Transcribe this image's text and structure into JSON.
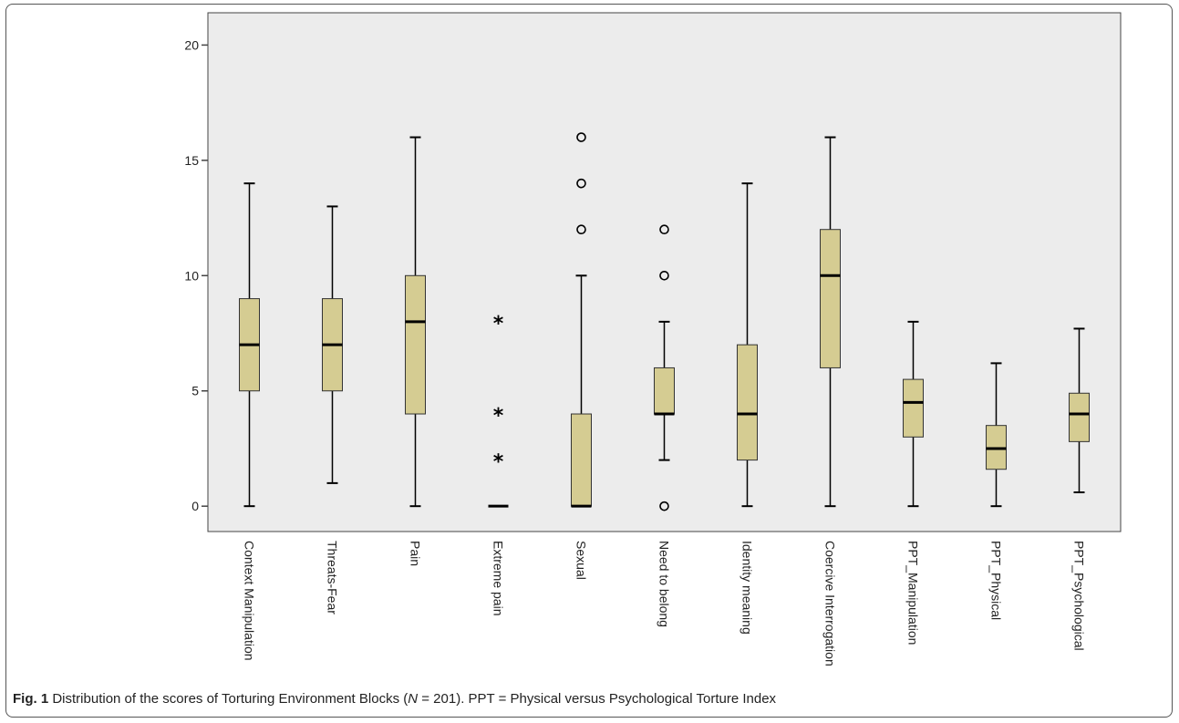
{
  "caption": {
    "fig_label": "Fig. 1",
    "text_before_n": "Distribution of the scores of Torturing Environment Blocks (",
    "n_symbol": "N",
    "text_after_n": " = 201). PPT = Physical versus Psychological Torture Index"
  },
  "colors": {
    "plot_background": "#ececec",
    "box_fill": "#d5cc92",
    "box_stroke": "#333333",
    "median": "#000000"
  },
  "chart_data": {
    "type": "boxplot",
    "title": "",
    "xlabel": "",
    "ylabel": "",
    "ylim": [
      -1.1,
      21.4
    ],
    "yticks": [
      0,
      5,
      10,
      15,
      20
    ],
    "grid": false,
    "categories": [
      "Context Manipulation",
      "Threats-Fear",
      "Pain",
      "Extreme pain",
      "Sexual",
      "Need to belong",
      "Identity meaning",
      "Coercive Interrogation",
      "PPT_Manipulation",
      "PPT_Physical",
      "PPT_Psychological"
    ],
    "boxes": [
      {
        "label": "Context Manipulation",
        "min": 0,
        "q1": 5,
        "median": 7,
        "q3": 9,
        "max": 14,
        "outliers": [],
        "extremes": []
      },
      {
        "label": "Threats-Fear",
        "min": 1,
        "q1": 5,
        "median": 7,
        "q3": 9,
        "max": 13,
        "outliers": [],
        "extremes": []
      },
      {
        "label": "Pain",
        "min": 0,
        "q1": 4,
        "median": 8,
        "q3": 10,
        "max": 16,
        "outliers": [],
        "extremes": []
      },
      {
        "label": "Extreme pain",
        "min": 0,
        "q1": 0,
        "median": 0,
        "q3": 0,
        "max": 0,
        "outliers": [],
        "extremes": [
          2,
          4,
          8
        ]
      },
      {
        "label": "Sexual",
        "min": 0,
        "q1": 0,
        "median": 0,
        "q3": 4,
        "max": 10,
        "outliers": [
          12,
          14,
          16
        ],
        "extremes": []
      },
      {
        "label": "Need to belong",
        "min": 2,
        "q1": 4,
        "median": 4,
        "q3": 6,
        "max": 8,
        "outliers": [
          0,
          10,
          12
        ],
        "extremes": []
      },
      {
        "label": "Identity meaning",
        "min": 0,
        "q1": 2,
        "median": 4,
        "q3": 7,
        "max": 14,
        "outliers": [],
        "extremes": []
      },
      {
        "label": "Coercive Interrogation",
        "min": 0,
        "q1": 6,
        "median": 10,
        "q3": 12,
        "max": 16,
        "outliers": [],
        "extremes": []
      },
      {
        "label": "PPT_Manipulation",
        "min": 0,
        "q1": 3,
        "median": 4.5,
        "q3": 5.5,
        "max": 8,
        "outliers": [],
        "extremes": []
      },
      {
        "label": "PPT_Physical",
        "min": 0,
        "q1": 1.6,
        "median": 2.5,
        "q3": 3.5,
        "max": 6.2,
        "outliers": [],
        "extremes": []
      },
      {
        "label": "PPT_Psychological",
        "min": 0.6,
        "q1": 2.8,
        "median": 4,
        "q3": 4.9,
        "max": 7.7,
        "outliers": [],
        "extremes": []
      }
    ]
  }
}
